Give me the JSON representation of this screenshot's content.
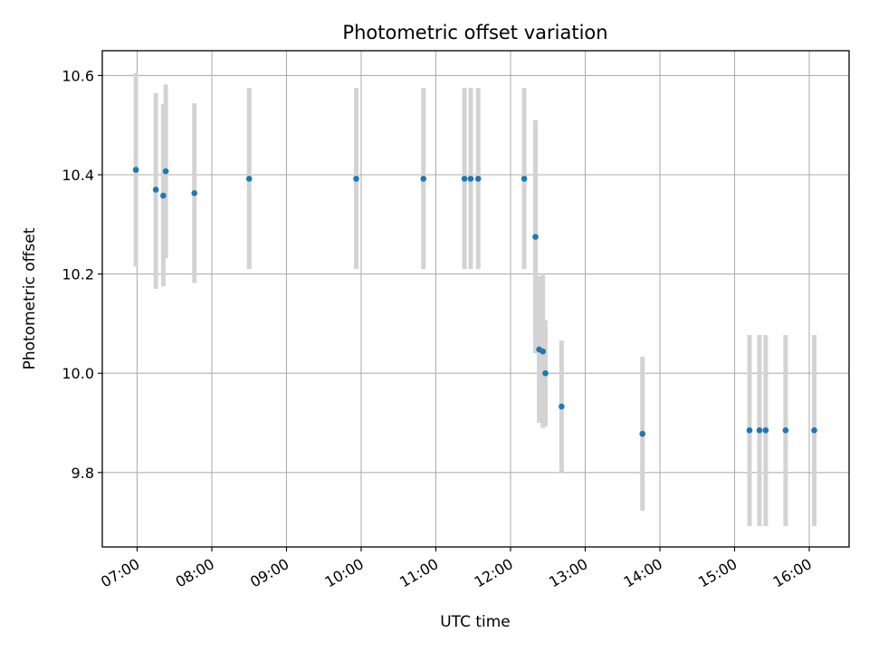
{
  "chart_data": {
    "type": "scatter",
    "title": "Photometric offset variation",
    "xlabel": "UTC time",
    "ylabel": "Photometric offset",
    "x_range": [
      "06:32",
      "16:32"
    ],
    "ylim": [
      9.65,
      10.65
    ],
    "x_ticks": [
      "07:00",
      "08:00",
      "09:00",
      "10:00",
      "11:00",
      "12:00",
      "13:00",
      "14:00",
      "15:00",
      "16:00"
    ],
    "y_ticks": [
      9.8,
      10.0,
      10.2,
      10.4,
      10.6
    ],
    "y_tick_labels": [
      "9.8",
      "10.0",
      "10.2",
      "10.4",
      "10.6"
    ],
    "grid": true,
    "x_tick_rotation_deg": 30,
    "colors": {
      "point": "#1f77b4",
      "error_bar": "#d3d3d3",
      "grid": "#b0b0b0",
      "axes": "#000000"
    },
    "points": [
      {
        "t": "06:59",
        "y": 10.41,
        "lo": 10.215,
        "hi": 10.605
      },
      {
        "t": "07:15",
        "y": 10.37,
        "lo": 10.17,
        "hi": 10.565
      },
      {
        "t": "07:21",
        "y": 10.358,
        "lo": 10.175,
        "hi": 10.542
      },
      {
        "t": "07:23",
        "y": 10.407,
        "lo": 10.232,
        "hi": 10.582
      },
      {
        "t": "07:46",
        "y": 10.363,
        "lo": 10.182,
        "hi": 10.544
      },
      {
        "t": "08:30",
        "y": 10.392,
        "lo": 10.21,
        "hi": 10.575
      },
      {
        "t": "09:56",
        "y": 10.392,
        "lo": 10.21,
        "hi": 10.575
      },
      {
        "t": "10:50",
        "y": 10.392,
        "lo": 10.21,
        "hi": 10.575
      },
      {
        "t": "11:23",
        "y": 10.392,
        "lo": 10.21,
        "hi": 10.575
      },
      {
        "t": "11:28",
        "y": 10.392,
        "lo": 10.21,
        "hi": 10.575
      },
      {
        "t": "11:34",
        "y": 10.392,
        "lo": 10.21,
        "hi": 10.575
      },
      {
        "t": "12:11",
        "y": 10.392,
        "lo": 10.21,
        "hi": 10.575
      },
      {
        "t": "12:20",
        "y": 10.275,
        "lo": 10.04,
        "hi": 10.51
      },
      {
        "t": "12:23",
        "y": 10.048,
        "lo": 9.9,
        "hi": 10.196
      },
      {
        "t": "12:26",
        "y": 10.044,
        "lo": 9.89,
        "hi": 10.198
      },
      {
        "t": "12:28",
        "y": 10.0,
        "lo": 9.893,
        "hi": 10.107
      },
      {
        "t": "12:41",
        "y": 9.933,
        "lo": 9.8,
        "hi": 10.066
      },
      {
        "t": "13:46",
        "y": 9.878,
        "lo": 9.723,
        "hi": 10.033
      },
      {
        "t": "15:12",
        "y": 9.885,
        "lo": 9.692,
        "hi": 10.077
      },
      {
        "t": "15:20",
        "y": 9.885,
        "lo": 9.692,
        "hi": 10.077
      },
      {
        "t": "15:25",
        "y": 9.885,
        "lo": 9.692,
        "hi": 10.077
      },
      {
        "t": "15:41",
        "y": 9.885,
        "lo": 9.692,
        "hi": 10.077
      },
      {
        "t": "16:04",
        "y": 9.885,
        "lo": 9.692,
        "hi": 10.077
      }
    ]
  }
}
